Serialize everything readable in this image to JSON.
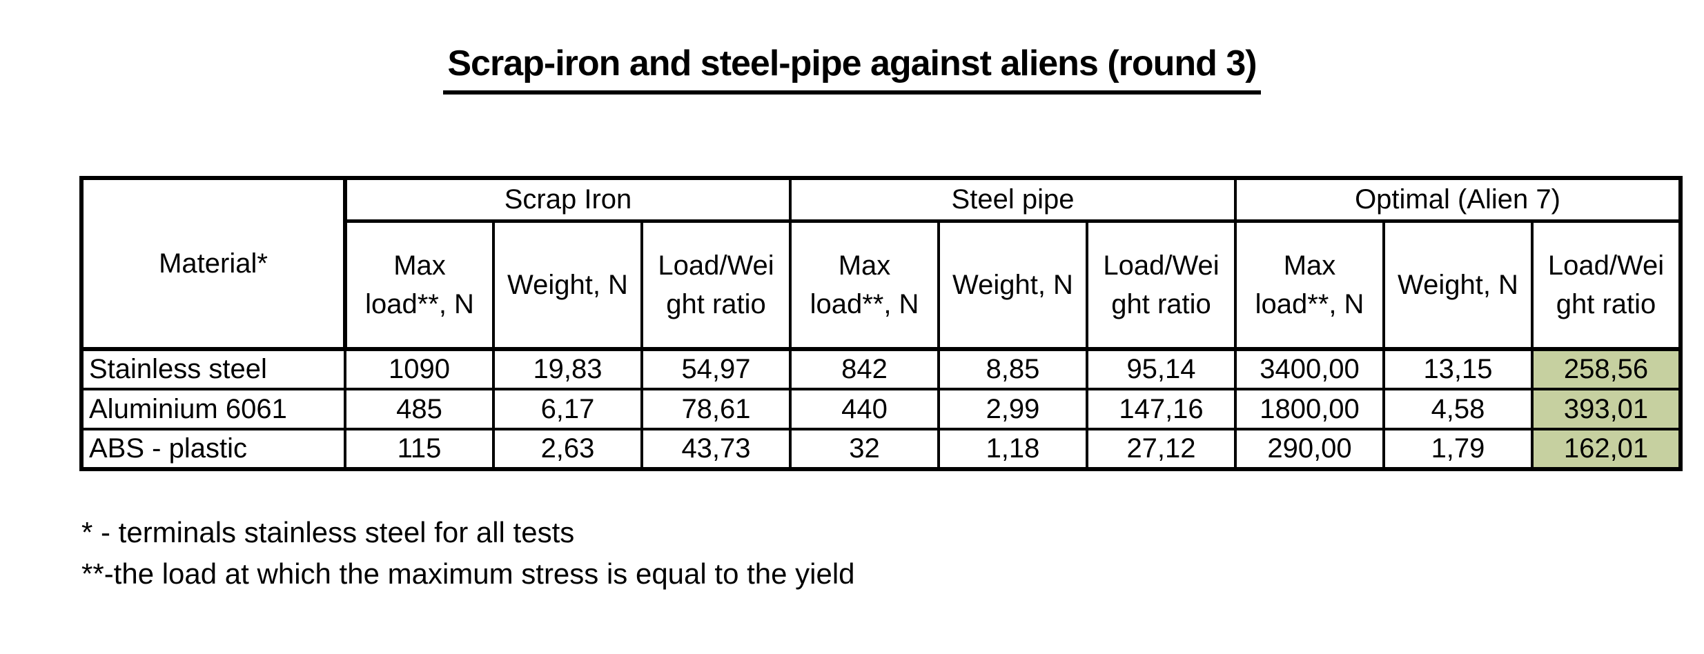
{
  "title": "Scrap-iron and steel-pipe against aliens (round 3)",
  "table": {
    "material_header": "Material*",
    "groups": [
      {
        "label": "Scrap Iron"
      },
      {
        "label": "Steel pipe"
      },
      {
        "label": "Optimal (Alien 7)"
      }
    ],
    "sub_headers": {
      "max_load": "Max\nload**, N",
      "weight": "Weight, N",
      "ratio": "Load/Wei\nght ratio"
    },
    "rows": [
      {
        "material": "Stainless steel",
        "values": [
          "1090",
          "19,83",
          "54,97",
          "842",
          "8,85",
          "95,14",
          "3400,00",
          "13,15",
          "258,56"
        ]
      },
      {
        "material": "Aluminium 6061",
        "values": [
          "485",
          "6,17",
          "78,61",
          "440",
          "2,99",
          "147,16",
          "1800,00",
          "4,58",
          "393,01"
        ]
      },
      {
        "material": "ABS - plastic",
        "values": [
          "115",
          "2,63",
          "43,73",
          "32",
          "1,18",
          "27,12",
          "290,00",
          "1,79",
          "162,01"
        ]
      }
    ]
  },
  "footnotes": [
    "* - terminals stainless steel for all tests",
    "**-the load at which the maximum stress is equal to the yield"
  ],
  "colors": {
    "highlight_green": "#c6d0a0",
    "border": "#000000"
  }
}
